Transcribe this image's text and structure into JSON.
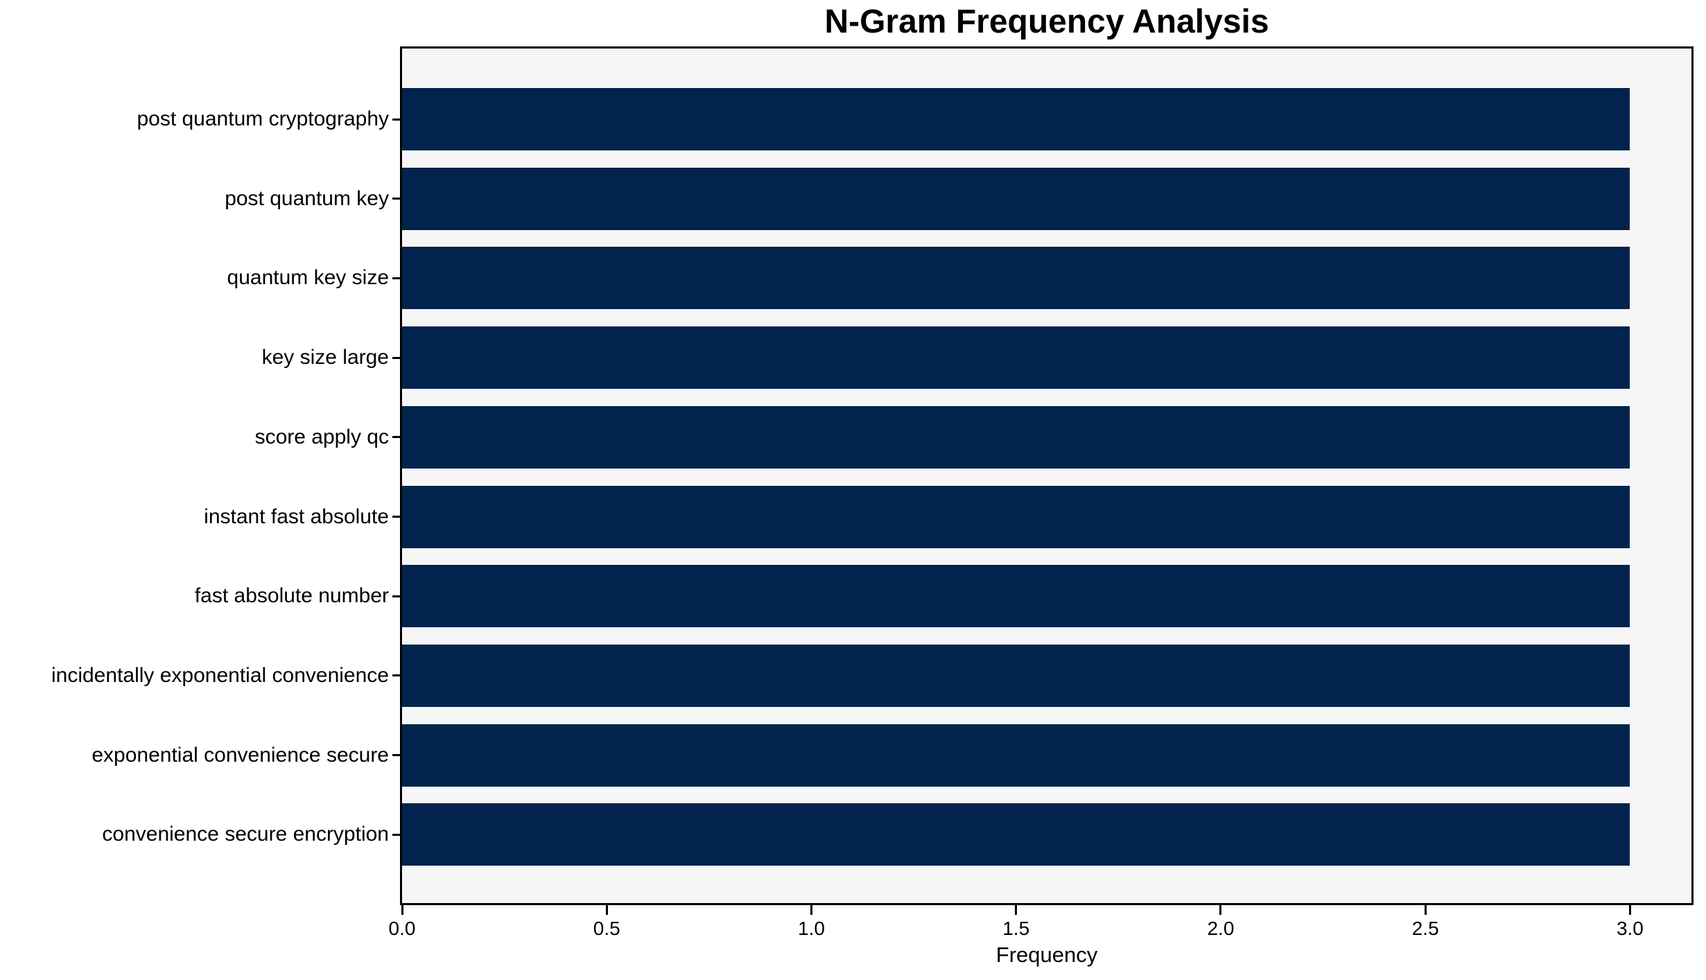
{
  "chart_data": {
    "type": "bar",
    "orientation": "horizontal",
    "title": "N-Gram Frequency Analysis",
    "xlabel": "Frequency",
    "ylabel": "",
    "categories": [
      "post quantum cryptography",
      "post quantum key",
      "quantum key size",
      "key size large",
      "score apply qc",
      "instant fast absolute",
      "fast absolute number",
      "incidentally exponential convenience",
      "exponential convenience secure",
      "convenience secure encryption"
    ],
    "values": [
      3.0,
      3.0,
      3.0,
      3.0,
      3.0,
      3.0,
      3.0,
      3.0,
      3.0,
      3.0
    ],
    "xlim": [
      0.0,
      3.15
    ],
    "xticks": [
      0.0,
      0.5,
      1.0,
      1.5,
      2.0,
      2.5,
      3.0
    ],
    "xtick_labels": [
      "0.0",
      "0.5",
      "1.0",
      "1.5",
      "2.0",
      "2.5",
      "3.0"
    ],
    "grid": false,
    "legend": "none",
    "bar_color": "#02234d",
    "plot_background": "#f6f6f6",
    "figure_background": "#ffffff",
    "axis_color": "#000000"
  }
}
